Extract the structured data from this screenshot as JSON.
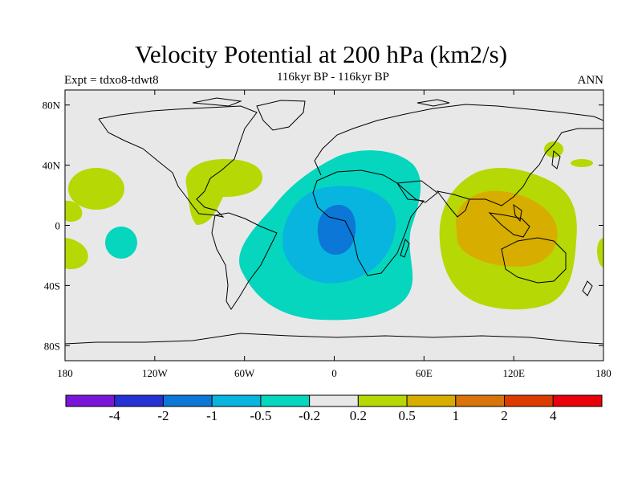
{
  "title": "Velocity Potential at 200 hPa (km2/s)",
  "subtitle": "116kyr BP - 116kyr BP",
  "left_label": "Expt = tdxo8-tdwt8",
  "right_label": "ANN",
  "map": {
    "projection": "cylindrical-equidistant",
    "lon_range": [
      -180,
      180
    ],
    "lat_range": [
      -90,
      90
    ],
    "background_color": "#e8e8e8",
    "x_ticks": [
      {
        "lon": -180,
        "label": "180"
      },
      {
        "lon": -120,
        "label": "120W"
      },
      {
        "lon": -60,
        "label": "60W"
      },
      {
        "lon": 0,
        "label": "0"
      },
      {
        "lon": 60,
        "label": "60E"
      },
      {
        "lon": 120,
        "label": "120E"
      },
      {
        "lon": 180,
        "label": "180"
      }
    ],
    "y_ticks": [
      {
        "lat": 80,
        "label": "80N"
      },
      {
        "lat": 40,
        "label": "40N"
      },
      {
        "lat": 0,
        "label": "0"
      },
      {
        "lat": -40,
        "label": "40S"
      },
      {
        "lat": -80,
        "label": "80S"
      }
    ]
  },
  "colorbar": {
    "colors": [
      "#7a16d8",
      "#2530d5",
      "#0c77d6",
      "#08b5df",
      "#05d6bd",
      "#e8e8e8",
      "#b6d804",
      "#d7ad00",
      "#d9740a",
      "#dc3b00",
      "#e8000a"
    ],
    "labels": [
      "-4",
      "-2",
      "-1",
      "-0.5",
      "-0.2",
      "0.2",
      "0.5",
      "1",
      "2",
      "4"
    ]
  },
  "field": {
    "description_levels": [
      "-1",
      "-0.5",
      "-0.2",
      "0.2",
      "0.5"
    ],
    "negative_center_lonlat": [
      -5,
      -5
    ],
    "positive_center_lonlat": [
      115,
      -5
    ]
  }
}
